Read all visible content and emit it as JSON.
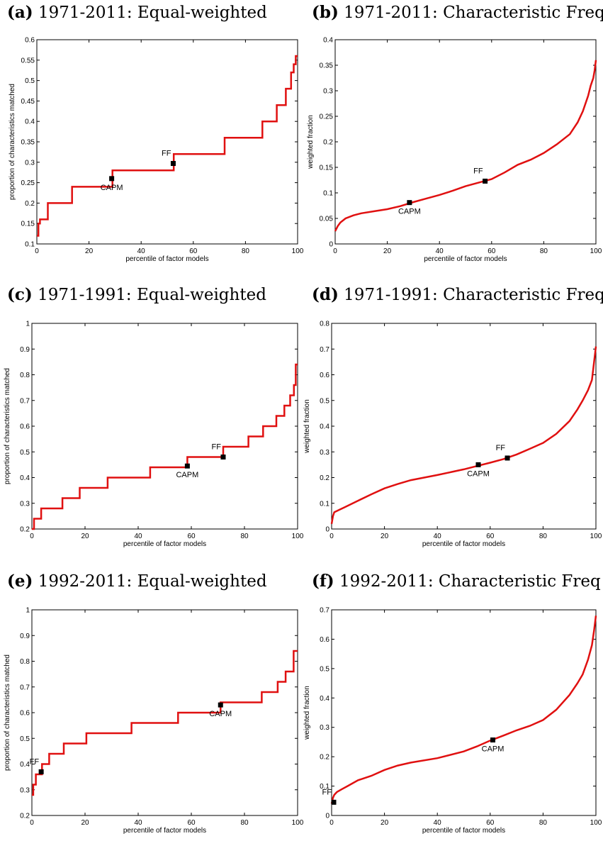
{
  "chart_data": [
    {
      "type": "line",
      "panel_label": "(a)",
      "title": "1971-2011: Equal-weighted",
      "xlabel": "percentile of factor models",
      "ylabel": "proportion of characteristics matched",
      "xlim": [
        0,
        100
      ],
      "ylim": [
        0.1,
        0.6
      ],
      "x_ticks": [
        "0",
        "20",
        "40",
        "60",
        "80",
        "100"
      ],
      "y_ticks": [
        "0.1",
        "0.15",
        "0.2",
        "0.25",
        "0.3",
        "0.35",
        "0.4",
        "0.45",
        "0.5",
        "0.55",
        "0.6"
      ],
      "step": true,
      "grid": false,
      "line_color": "#e01010",
      "series": [
        {
          "x": [
            0,
            0.6,
            1.2,
            4.2,
            13.5,
            29,
            52.5,
            72,
            86.5,
            92,
            95.5,
            97.5,
            98.5,
            99.3,
            100
          ],
          "values": [
            0.12,
            0.15,
            0.16,
            0.2,
            0.24,
            0.28,
            0.32,
            0.36,
            0.4,
            0.44,
            0.48,
            0.52,
            0.54,
            0.56,
            0.56
          ]
        }
      ],
      "markers": [
        {
          "label": "CAPM",
          "x": 28.7,
          "y": 0.26,
          "label_pos": "below"
        },
        {
          "label": "FF",
          "x": 52.3,
          "y": 0.297,
          "label_pos": "above-left"
        }
      ]
    },
    {
      "type": "line",
      "panel_label": "(b)",
      "title": "1971-2011: Characteristic Freq",
      "xlabel": "percentile of factor models",
      "ylabel": "weighted fraction",
      "xlim": [
        0,
        100
      ],
      "ylim": [
        0,
        0.4
      ],
      "x_ticks": [
        "0",
        "20",
        "40",
        "60",
        "80",
        "100"
      ],
      "y_ticks": [
        "0",
        "0.05",
        "0.1",
        "0.15",
        "0.2",
        "0.25",
        "0.3",
        "0.35",
        "0.4"
      ],
      "step": false,
      "grid": false,
      "line_color": "#e01010",
      "series": [
        {
          "x": [
            0,
            1,
            2,
            4,
            7,
            10,
            15,
            20,
            25,
            30,
            35,
            40,
            45,
            50,
            55,
            60,
            65,
            70,
            75,
            80,
            85,
            90,
            93,
            95,
            97,
            98,
            99,
            99.5,
            100
          ],
          "values": [
            0.025,
            0.035,
            0.042,
            0.05,
            0.056,
            0.06,
            0.064,
            0.068,
            0.074,
            0.082,
            0.089,
            0.096,
            0.104,
            0.113,
            0.12,
            0.127,
            0.14,
            0.155,
            0.165,
            0.178,
            0.195,
            0.215,
            0.238,
            0.26,
            0.29,
            0.31,
            0.325,
            0.34,
            0.36
          ]
        }
      ],
      "markers": [
        {
          "label": "CAPM",
          "x": 28.5,
          "y": 0.081,
          "label_pos": "below"
        },
        {
          "label": "FF",
          "x": 57.5,
          "y": 0.123,
          "label_pos": "above-left"
        }
      ]
    },
    {
      "type": "line",
      "panel_label": "(c)",
      "title": "1971-1991: Equal-weighted",
      "xlabel": "percentile of factor models",
      "ylabel": "proportion of characteristics matched",
      "xlim": [
        0,
        100
      ],
      "ylim": [
        0.2,
        1
      ],
      "x_ticks": [
        "0",
        "20",
        "40",
        "60",
        "80",
        "100"
      ],
      "y_ticks": [
        "0.2",
        "0.3",
        "0.4",
        "0.5",
        "0.6",
        "0.7",
        "0.8",
        "0.9",
        "1"
      ],
      "step": true,
      "grid": false,
      "line_color": "#e01010",
      "series": [
        {
          "x": [
            0,
            0.8,
            3.5,
            11.5,
            18,
            28.5,
            44.5,
            58.5,
            72,
            81.5,
            87,
            92,
            95,
            97.2,
            98.6,
            99.3,
            100
          ],
          "values": [
            0.2,
            0.24,
            0.28,
            0.32,
            0.36,
            0.4,
            0.44,
            0.48,
            0.52,
            0.56,
            0.6,
            0.64,
            0.68,
            0.72,
            0.76,
            0.84,
            0.84
          ]
        }
      ],
      "markers": [
        {
          "label": "CAPM",
          "x": 58.5,
          "y": 0.445,
          "label_pos": "below"
        },
        {
          "label": "FF",
          "x": 72,
          "y": 0.48,
          "label_pos": "above-left"
        }
      ]
    },
    {
      "type": "line",
      "panel_label": "(d)",
      "title": "1971-1991: Characteristic Freq",
      "xlabel": "percentile of factor models",
      "ylabel": "weighted fraction",
      "xlim": [
        0,
        100
      ],
      "ylim": [
        0,
        0.8
      ],
      "x_ticks": [
        "0",
        "20",
        "40",
        "60",
        "80",
        "100"
      ],
      "y_ticks": [
        "0",
        "0.1",
        "0.2",
        "0.3",
        "0.4",
        "0.5",
        "0.6",
        "0.7",
        "0.8"
      ],
      "step": false,
      "grid": false,
      "line_color": "#e01010",
      "series": [
        {
          "x": [
            0,
            0.5,
            1,
            3,
            5,
            10,
            15,
            20,
            25,
            30,
            40,
            50,
            55,
            60,
            65,
            70,
            75,
            80,
            85,
            90,
            93,
            95,
            97,
            98.5,
            99.3,
            100
          ],
          "values": [
            0.02,
            0.05,
            0.065,
            0.075,
            0.085,
            0.11,
            0.135,
            0.158,
            0.175,
            0.19,
            0.21,
            0.232,
            0.245,
            0.258,
            0.272,
            0.29,
            0.312,
            0.335,
            0.37,
            0.42,
            0.465,
            0.5,
            0.54,
            0.58,
            0.65,
            0.71
          ]
        }
      ],
      "markers": [
        {
          "label": "CAPM",
          "x": 55.5,
          "y": 0.25,
          "label_pos": "below"
        },
        {
          "label": "FF",
          "x": 66.5,
          "y": 0.276,
          "label_pos": "above-left"
        }
      ]
    },
    {
      "type": "line",
      "panel_label": "(e)",
      "title": "1992-2011: Equal-weighted",
      "xlabel": "percentile of factor models",
      "ylabel": "proportion of characteristics matched",
      "xlim": [
        0,
        100
      ],
      "ylim": [
        0.2,
        1
      ],
      "x_ticks": [
        "0",
        "20",
        "40",
        "60",
        "80",
        "100"
      ],
      "y_ticks": [
        "0.2",
        "0.3",
        "0.4",
        "0.5",
        "0.6",
        "0.7",
        "0.8",
        "0.9",
        "1"
      ],
      "step": true,
      "grid": false,
      "line_color": "#e01010",
      "series": [
        {
          "x": [
            0,
            0.5,
            1.5,
            3.8,
            6.5,
            12,
            20.5,
            37.5,
            55,
            71,
            86.5,
            92.5,
            95.5,
            98.5,
            100
          ],
          "values": [
            0.28,
            0.32,
            0.36,
            0.4,
            0.44,
            0.48,
            0.52,
            0.56,
            0.6,
            0.64,
            0.68,
            0.72,
            0.76,
            0.84,
            0.84
          ]
        }
      ],
      "markers": [
        {
          "label": "FF",
          "x": 3.5,
          "y": 0.37,
          "label_pos": "above-left"
        },
        {
          "label": "CAPM",
          "x": 71,
          "y": 0.63,
          "label_pos": "below"
        }
      ]
    },
    {
      "type": "line",
      "panel_label": "(f)",
      "title": "1992-2011: Characteristic Freq",
      "xlabel": "percentile of factor models",
      "ylabel": "weighted fraction",
      "xlim": [
        0,
        100
      ],
      "ylim": [
        0,
        0.7
      ],
      "x_ticks": [
        "0",
        "20",
        "40",
        "60",
        "80",
        "100"
      ],
      "y_ticks": [
        "0",
        "0.1",
        "0.2",
        "0.3",
        "0.4",
        "0.5",
        "0.6",
        "0.7"
      ],
      "step": false,
      "grid": false,
      "line_color": "#e01010",
      "series": [
        {
          "x": [
            0,
            0.5,
            1,
            2,
            4,
            6,
            10,
            15,
            20,
            25,
            30,
            40,
            50,
            55,
            60,
            65,
            70,
            75,
            80,
            85,
            90,
            93,
            95,
            97,
            98.5,
            99.3,
            100
          ],
          "values": [
            0.04,
            0.06,
            0.07,
            0.08,
            0.09,
            0.1,
            0.12,
            0.135,
            0.155,
            0.17,
            0.18,
            0.195,
            0.218,
            0.235,
            0.255,
            0.272,
            0.29,
            0.305,
            0.325,
            0.36,
            0.41,
            0.45,
            0.48,
            0.53,
            0.58,
            0.63,
            0.68
          ]
        }
      ],
      "markers": [
        {
          "label": "FF",
          "x": 0.8,
          "y": 0.045,
          "label_pos": "above-left"
        },
        {
          "label": "CAPM",
          "x": 61,
          "y": 0.257,
          "label_pos": "below"
        }
      ]
    }
  ]
}
